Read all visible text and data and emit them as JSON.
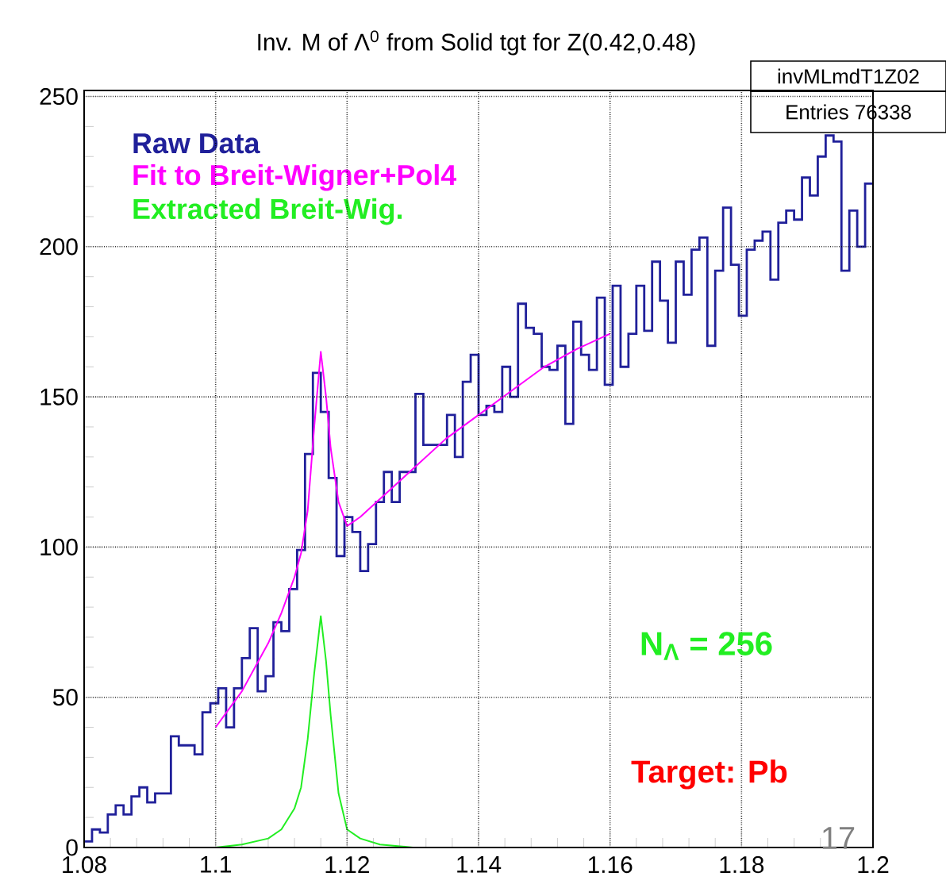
{
  "chart_data": {
    "type": "histogram",
    "title": "Inv. M of  Λ$^{0}$ from Solid tgt for Z(0.42,0.48)",
    "bins": [
      1.08,
      1.0812,
      1.0824,
      1.0836,
      1.0848,
      1.086,
      1.0872,
      1.0884,
      1.0896,
      1.0908,
      1.092,
      1.0932,
      1.0944,
      1.0956,
      1.0968,
      1.098,
      1.0992,
      1.1004,
      1.1016,
      1.1028,
      1.104,
      1.1052,
      1.1064,
      1.1076,
      1.1088,
      1.11,
      1.1112,
      1.1124,
      1.1136,
      1.1148,
      1.116,
      1.1172,
      1.1184,
      1.1196,
      1.1208,
      1.122,
      1.1232,
      1.1244,
      1.1256,
      1.1268,
      1.128,
      1.1292,
      1.1304,
      1.1316,
      1.1328,
      1.134,
      1.1352,
      1.1364,
      1.1376,
      1.1388,
      1.14,
      1.1412,
      1.1424,
      1.1436,
      1.1448,
      1.146,
      1.1472,
      1.1484,
      1.1496,
      1.1508,
      1.152,
      1.1532,
      1.1544,
      1.1556,
      1.1568,
      1.158,
      1.1592,
      1.1604,
      1.1616,
      1.1628,
      1.164,
      1.1652,
      1.1664,
      1.1676,
      1.1688,
      1.17,
      1.1712,
      1.1724,
      1.1736,
      1.1748,
      1.176,
      1.1772,
      1.1784,
      1.1796,
      1.1808,
      1.182,
      1.1832,
      1.1844,
      1.1856,
      1.1868,
      1.188,
      1.1892,
      1.1904,
      1.1916,
      1.1928,
      1.194,
      1.1952,
      1.1964,
      1.1976,
      1.1988,
      1.2
    ],
    "series": [
      {
        "name": "Raw Data",
        "color": "#20209a",
        "values": [
          2,
          6,
          5,
          11,
          14,
          11,
          17,
          20,
          15,
          18,
          18,
          37,
          34,
          34,
          31,
          45,
          48,
          53,
          40,
          53,
          63,
          73,
          52,
          57,
          75,
          72,
          86,
          99,
          131,
          158,
          145,
          123,
          97,
          110,
          105,
          92,
          101,
          115,
          125,
          115,
          125,
          125,
          151,
          134,
          134,
          134,
          144,
          130,
          155,
          164,
          144,
          147,
          145,
          160,
          150,
          181,
          173,
          171,
          160,
          159,
          167,
          141,
          175,
          164,
          159,
          183,
          154,
          187,
          160,
          171,
          187,
          172,
          195,
          182,
          168,
          195,
          184,
          199,
          203,
          167,
          192,
          213,
          194,
          177,
          199,
          202,
          205,
          189,
          208,
          212,
          209,
          223,
          217,
          230,
          237,
          235,
          192,
          212,
          200,
          221
        ]
      },
      {
        "name": "Fit to Breit-Wigner+Pol4",
        "type": "line",
        "color": "#ff00ff",
        "x": [
          1.1,
          1.104,
          1.108,
          1.11,
          1.112,
          1.113,
          1.114,
          1.115,
          1.116,
          1.1168,
          1.1175,
          1.1187,
          1.12,
          1.122,
          1.125,
          1.13,
          1.135,
          1.14,
          1.145,
          1.15,
          1.155,
          1.16
        ],
        "values": [
          40,
          52,
          68,
          78,
          90,
          98,
          112,
          140,
          165,
          150,
          133,
          115,
          107,
          110,
          116,
          126,
          136,
          144,
          152,
          160,
          166,
          171
        ]
      },
      {
        "name": "Extracted Breit-Wig.",
        "type": "line",
        "color": "#22ee22",
        "x": [
          1.1,
          1.104,
          1.108,
          1.11,
          1.112,
          1.113,
          1.114,
          1.115,
          1.116,
          1.1168,
          1.1175,
          1.1187,
          1.12,
          1.122,
          1.125,
          1.13,
          1.14
        ],
        "values": [
          0,
          1,
          3,
          6,
          13,
          20,
          36,
          58,
          77,
          62,
          44,
          18,
          6,
          3,
          1,
          0,
          0
        ]
      }
    ],
    "xlim": [
      1.08,
      1.2
    ],
    "ylim": [
      0,
      252
    ],
    "xticks": [
      {
        "value": 1.08,
        "label": "1.08"
      },
      {
        "value": 1.1,
        "label": "1.1"
      },
      {
        "value": 1.12,
        "label": "1.12"
      },
      {
        "value": 1.14,
        "label": "1.14"
      },
      {
        "value": 1.16,
        "label": "1.16"
      },
      {
        "value": 1.18,
        "label": "1.18"
      },
      {
        "value": 1.2,
        "label": "1.2"
      }
    ],
    "yticks": [
      0,
      50,
      100,
      150,
      200,
      250
    ],
    "grid": true,
    "legend": "top left",
    "annotations": [
      "invMLmdT1Z02",
      "Entries   76338",
      "N$_{Λ}$ = 256",
      "Target: Pb",
      "17"
    ]
  }
}
